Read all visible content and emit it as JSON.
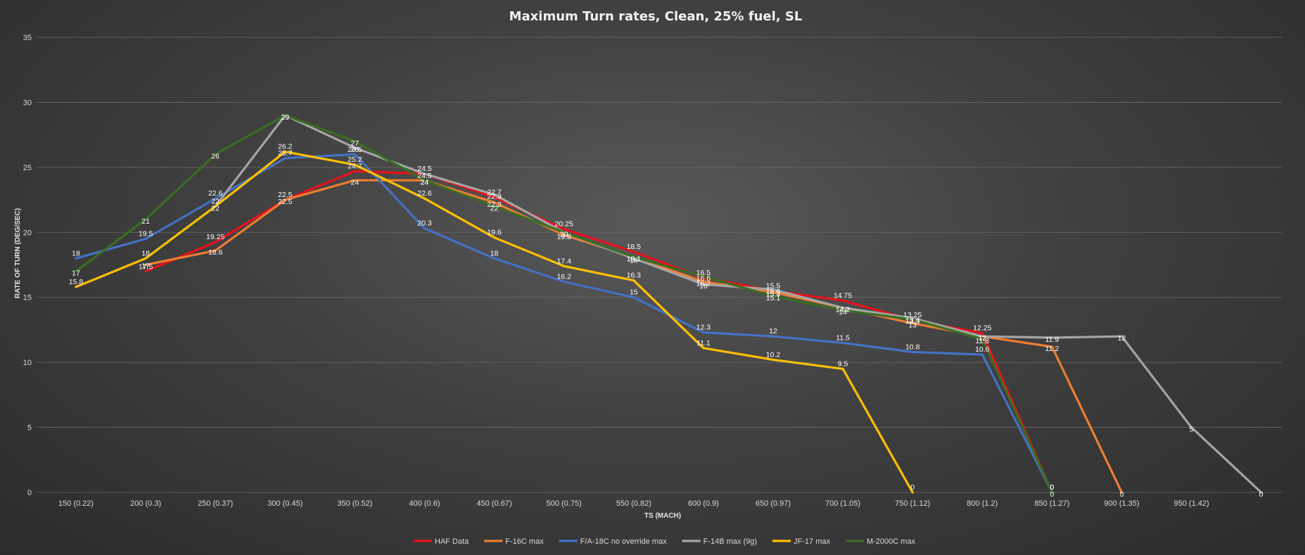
{
  "chart_data": {
    "type": "line",
    "title": "Maximum  Turn rates, Clean, 25% fuel, SL",
    "xlabel": "TS (MACH)",
    "ylabel": "RATE OF TURN (DEG/SEC)",
    "ylim": [
      0,
      35
    ],
    "yticks": [
      0,
      5,
      10,
      15,
      20,
      25,
      30,
      35
    ],
    "grid": true,
    "legend_position": "bottom",
    "categories": [
      "150 (0.22)",
      "200 (0.3)",
      "250 (0.37)",
      "300 (0.45)",
      "350 (0.52)",
      "400 (0.6)",
      "450 (0.67)",
      "500 (0.75)",
      "550 (0.82)",
      "600 (0.9)",
      "650 (0.97)",
      "700 (1.05)",
      "750 (1.12)",
      "800 (1.2)",
      "850 (1.27)",
      "900 (1.35)",
      "950 (1.42)",
      ""
    ],
    "series": [
      {
        "name": "HAF Data",
        "color": "#e8111b",
        "values": [
          null,
          17,
          19.25,
          22.5,
          24.7,
          24.5,
          22.7,
          20.25,
          18.5,
          16.5,
          15.5,
          14.75,
          13.25,
          12.25,
          0,
          null,
          null,
          null
        ]
      },
      {
        "name": "F-16C max",
        "color": "#ed7d31",
        "values": [
          null,
          17.5,
          18.6,
          22.5,
          24,
          24,
          22.3,
          19.8,
          18.1,
          16.2,
          15.4,
          14.2,
          13,
          12,
          11.2,
          0,
          null,
          null
        ]
      },
      {
        "name": "F/A-18C no override max",
        "color": "#4472c4",
        "values": [
          18,
          19.5,
          22.6,
          25.7,
          26,
          20.3,
          18,
          16.2,
          15,
          12.3,
          12,
          11.5,
          10.8,
          10.6,
          0,
          null,
          null,
          null
        ]
      },
      {
        "name": "F-14B max (9g)",
        "color": "#a5a5a5",
        "values": [
          null,
          null,
          22,
          29,
          26.5,
          24.5,
          22.9,
          20,
          18,
          16,
          15.6,
          14.2,
          13.4,
          12,
          11.9,
          12,
          5,
          0
        ]
      },
      {
        "name": "JF-17 max",
        "color": "#ffc000",
        "values": [
          15.8,
          18,
          22,
          26.2,
          25.2,
          22.6,
          19.6,
          17.4,
          16.3,
          11.1,
          10.2,
          9.5,
          0,
          null,
          null,
          null,
          null,
          null
        ]
      },
      {
        "name": "M-2000C max",
        "color": "#3b6e22",
        "values": [
          17,
          21,
          26,
          29,
          27,
          24,
          22,
          20,
          18.1,
          16.6,
          15.1,
          14,
          13.3,
          11.8,
          0,
          null,
          null,
          null
        ]
      }
    ]
  }
}
